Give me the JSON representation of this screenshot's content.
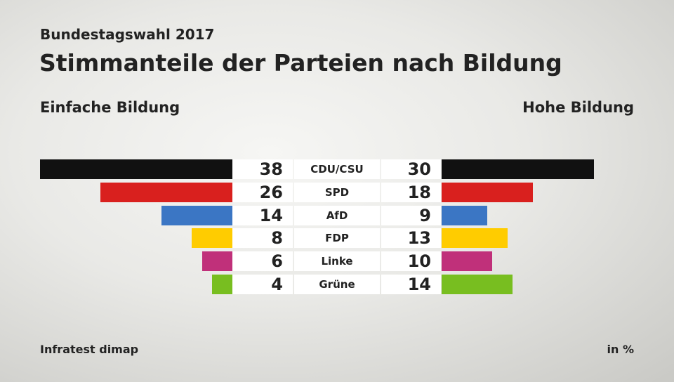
{
  "header": {
    "supertitle": "Bundestagswahl 2017",
    "title": "Stimmanteile der Parteien nach Bildung"
  },
  "footer": {
    "source": "Infratest dimap",
    "unit": "in %"
  },
  "chart_data": {
    "type": "bar",
    "title": "Stimmanteile der Parteien nach Bildung",
    "left_label": "Einfache Bildung",
    "right_label": "Hohe Bildung",
    "categories": [
      "CDU/CSU",
      "SPD",
      "AfD",
      "FDP",
      "Linke",
      "Grüne"
    ],
    "colors": [
      "#111111",
      "#d9201e",
      "#3b76c4",
      "#ffcc00",
      "#c0307a",
      "#78be20"
    ],
    "series": [
      {
        "name": "Einfache Bildung",
        "values": [
          38,
          26,
          14,
          8,
          6,
          4
        ]
      },
      {
        "name": "Hohe Bildung",
        "values": [
          30,
          18,
          9,
          13,
          10,
          14
        ]
      }
    ],
    "unit": "in %"
  }
}
